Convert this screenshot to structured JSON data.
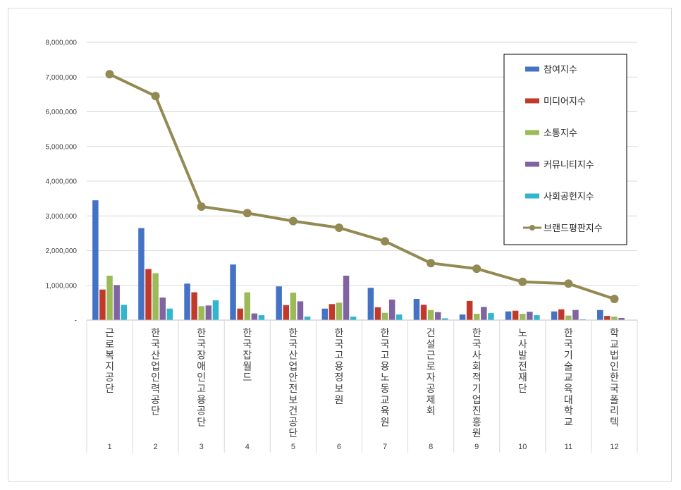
{
  "chart_data": {
    "type": "bar",
    "title": "",
    "xlabel": "",
    "ylabel": "",
    "ylim": [
      0,
      8000000
    ],
    "yticks": [
      "-",
      "1,000,000",
      "2,000,000",
      "3,000,000",
      "4,000,000",
      "5,000,000",
      "6,000,000",
      "7,000,000",
      "8,000,000"
    ],
    "ytick_values": [
      0,
      1000000,
      2000000,
      3000000,
      4000000,
      5000000,
      6000000,
      7000000,
      8000000
    ],
    "grid": true,
    "legend_position": "top-right",
    "categories": [
      "근로복지공단",
      "한국산업인력공단",
      "한국장애인고용공단",
      "한국잡월드",
      "한국산업안전보건공단",
      "한국고용정보원",
      "한국고용노동교육원",
      "건설근로자공제회",
      "한국사회적기업진흥원",
      "노사발전재단",
      "한국기술교육대학교",
      "학교법인한국폴리텍"
    ],
    "ranks": [
      "1",
      "2",
      "3",
      "4",
      "5",
      "6",
      "7",
      "8",
      "9",
      "10",
      "11",
      "12"
    ],
    "series": [
      {
        "name": "참여지수",
        "kind": "bar",
        "color": "#4472c4",
        "values": [
          3450000,
          2650000,
          1050000,
          1600000,
          970000,
          330000,
          930000,
          610000,
          160000,
          250000,
          250000,
          290000
        ]
      },
      {
        "name": "미디어지수",
        "kind": "bar",
        "color": "#c0392b",
        "values": [
          880000,
          1470000,
          800000,
          330000,
          430000,
          460000,
          370000,
          440000,
          550000,
          270000,
          310000,
          120000
        ]
      },
      {
        "name": "소통지수",
        "kind": "bar",
        "color": "#9bbb59",
        "values": [
          1280000,
          1350000,
          400000,
          800000,
          790000,
          500000,
          210000,
          290000,
          180000,
          180000,
          130000,
          100000
        ]
      },
      {
        "name": "커뮤니티지수",
        "kind": "bar",
        "color": "#8064a2",
        "values": [
          1010000,
          650000,
          420000,
          190000,
          540000,
          1280000,
          590000,
          230000,
          380000,
          240000,
          290000,
          60000
        ]
      },
      {
        "name": "사회공헌지수",
        "kind": "bar",
        "color": "#31b6ce",
        "values": [
          440000,
          330000,
          570000,
          140000,
          100000,
          100000,
          160000,
          50000,
          200000,
          140000,
          20000,
          0
        ]
      },
      {
        "name": "브랜드평판지수",
        "kind": "line",
        "color": "#938953",
        "values": [
          7080000,
          6450000,
          3270000,
          3080000,
          2850000,
          2660000,
          2270000,
          1640000,
          1480000,
          1100000,
          1050000,
          610000
        ]
      }
    ]
  }
}
